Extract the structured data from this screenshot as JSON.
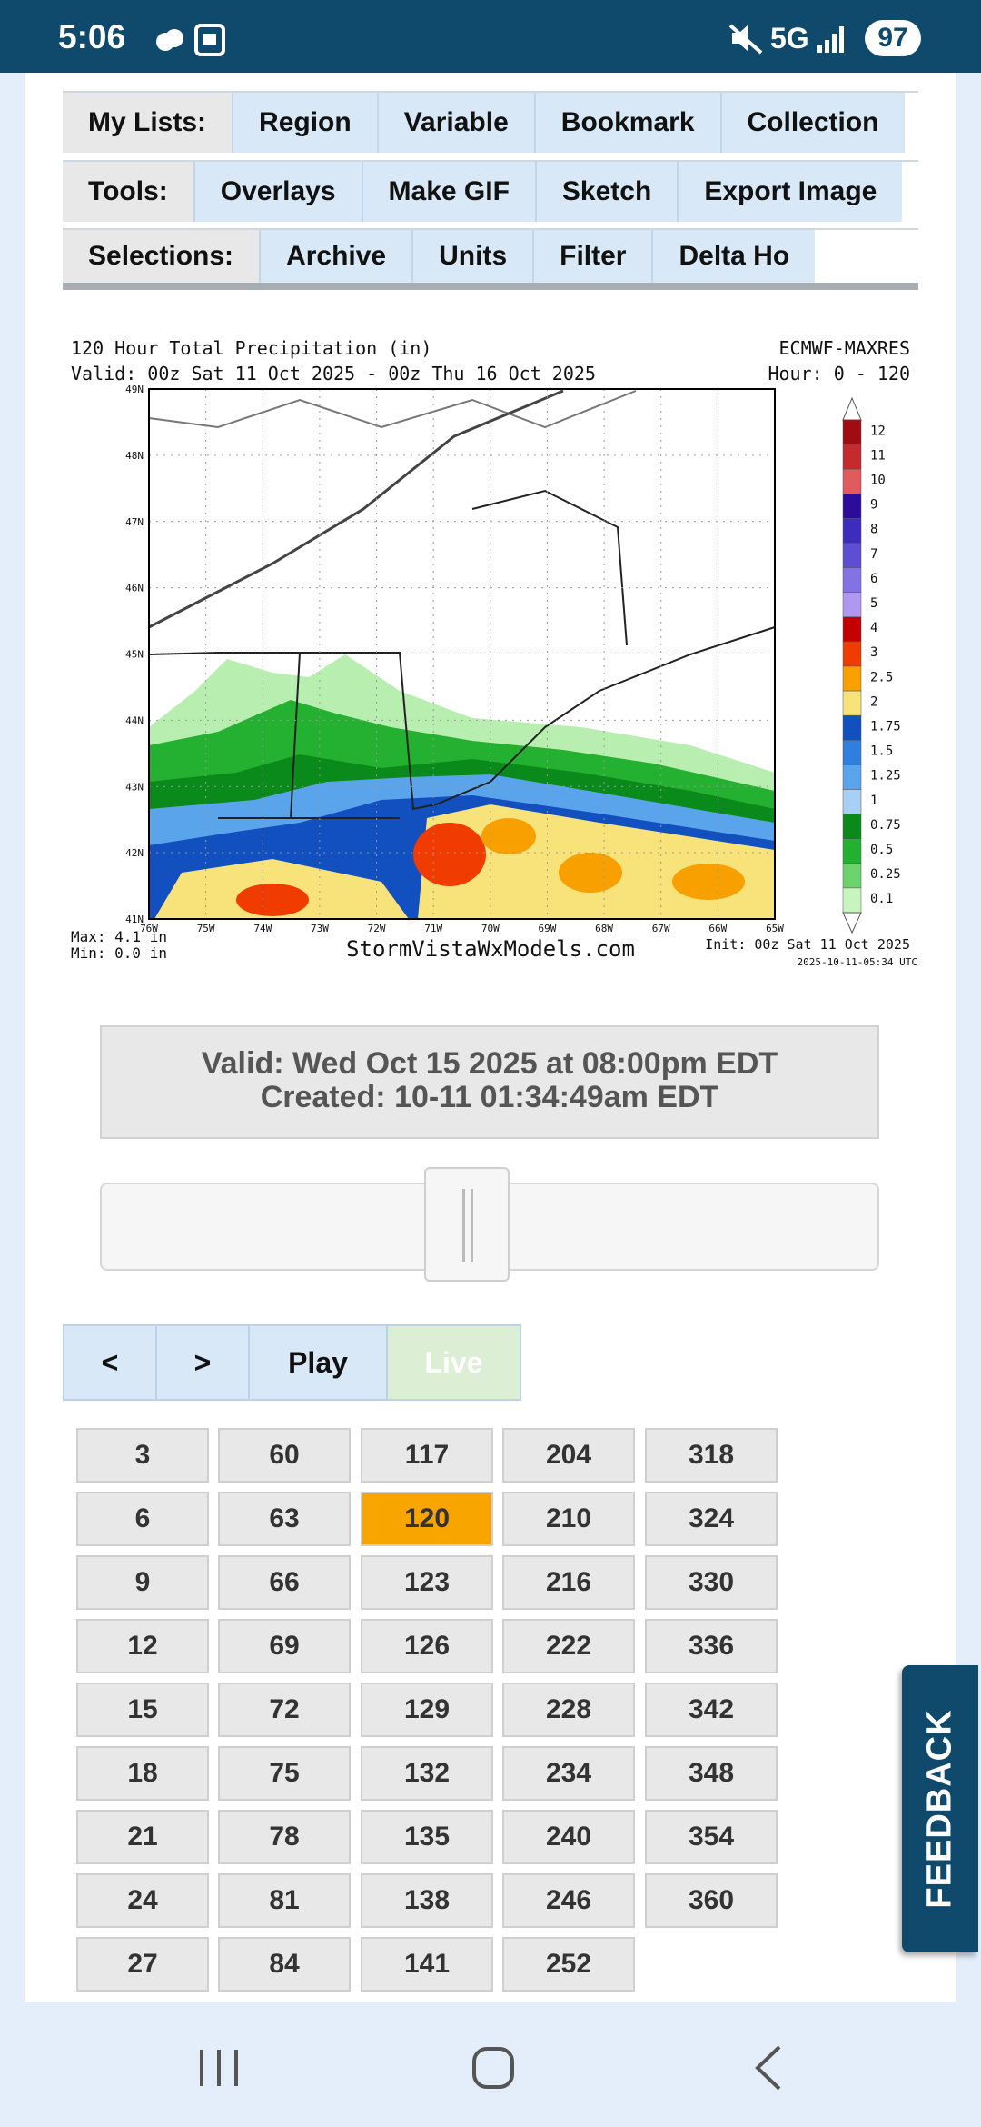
{
  "status_bar": {
    "time": "5:06",
    "network": "5G",
    "battery": "97"
  },
  "toolbars": [
    {
      "label": "My Lists:",
      "items": [
        "Region",
        "Variable",
        "Bookmark",
        "Collection"
      ]
    },
    {
      "label": "Tools:",
      "items": [
        "Overlays",
        "Make GIF",
        "Sketch",
        "Export Image"
      ]
    },
    {
      "label": "Selections:",
      "items": [
        "Archive",
        "Units",
        "Filter",
        "Delta Ho"
      ]
    }
  ],
  "map": {
    "title": "120 Hour Total Precipitation (in)",
    "valid": "Valid: 00z Sat 11 Oct 2025 - 00z Thu 16 Oct 2025",
    "model": "ECMWF-MAXRES",
    "hour": "Hour: 0 - 120",
    "lat_labels": [
      "49N",
      "48N",
      "47N",
      "46N",
      "45N",
      "44N",
      "43N",
      "42N",
      "41N"
    ],
    "lon_labels": [
      "76W",
      "75W",
      "74W",
      "73W",
      "72W",
      "71W",
      "70W",
      "69W",
      "68W",
      "67W",
      "66W",
      "65W"
    ],
    "legend": {
      "labels": [
        "12",
        "11",
        "10",
        "9",
        "8",
        "7",
        "6",
        "5",
        "4",
        "3",
        "2.5",
        "2",
        "1.75",
        "1.5",
        "1.25",
        "1",
        "0.75",
        "0.5",
        "0.25",
        "0.1"
      ],
      "colors": [
        "#a00c12",
        "#c42a2e",
        "#e05a5e",
        "#2c0c9a",
        "#3e2cc0",
        "#5e4ed4",
        "#8272e4",
        "#b098f0",
        "#c40000",
        "#f03c00",
        "#f8a000",
        "#f8e27a",
        "#1250c0",
        "#2e7fe0",
        "#5aa4ec",
        "#a8d0f6",
        "#0a8a1a",
        "#24b030",
        "#6cd46c",
        "#c8f4c0"
      ]
    },
    "max": "Max: 4.1 in",
    "min": "Min: 0.0 in",
    "site": "StormVistaWxModels.com",
    "init": "Init: 00z Sat 11 Oct 2025",
    "stamp": "2025-10-11-05:34 UTC"
  },
  "info": {
    "valid": "Valid: Wed Oct 15 2025 at 08:00pm EDT",
    "created": "Created: 10-11 01:34:49am EDT"
  },
  "controls": [
    "<",
    ">",
    "Play",
    "Live"
  ],
  "hours": {
    "rows": [
      [
        "3",
        "60",
        "117",
        "204",
        "318"
      ],
      [
        "6",
        "63",
        "120",
        "210",
        "324"
      ],
      [
        "9",
        "66",
        "123",
        "216",
        "330"
      ],
      [
        "12",
        "69",
        "126",
        "222",
        "336"
      ],
      [
        "15",
        "72",
        "129",
        "228",
        "342"
      ],
      [
        "18",
        "75",
        "132",
        "234",
        "348"
      ],
      [
        "21",
        "78",
        "135",
        "240",
        "354"
      ],
      [
        "24",
        "81",
        "138",
        "246",
        "360"
      ],
      [
        "27",
        "84",
        "141",
        "252"
      ]
    ],
    "selected_row": 1,
    "selected_col": 2
  },
  "feedback": "FEEDBACK"
}
